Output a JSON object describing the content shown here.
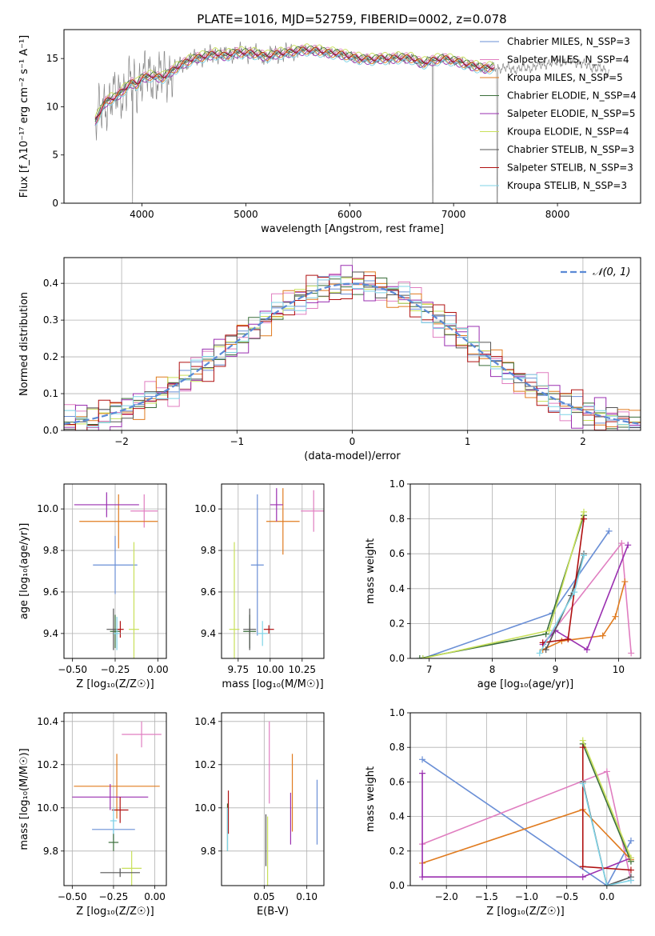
{
  "figure": {
    "title": "PLATE=1016, MJD=52759, FIBERID=0002, z=0.078"
  },
  "series_legend": [
    {
      "name": "Chabrier MILES, N_SSP=3",
      "color": "#6a8fd6"
    },
    {
      "name": "Salpeter MILES, N_SSP=4",
      "color": "#e07ec0"
    },
    {
      "name": "Kroupa MILES, N_SSP=5",
      "color": "#e07b1f"
    },
    {
      "name": "Chabrier ELODIE, N_SSP=4",
      "color": "#3a6e3a"
    },
    {
      "name": "Salpeter ELODIE, N_SSP=5",
      "color": "#9a2fb0"
    },
    {
      "name": "Kroupa ELODIE, N_SSP=4",
      "color": "#c8e05a"
    },
    {
      "name": "Chabrier STELIB, N_SSP=3",
      "color": "#555555"
    },
    {
      "name": "Salpeter STELIB, N_SSP=3",
      "color": "#b01010"
    },
    {
      "name": "Kroupa STELIB, N_SSP=3",
      "color": "#7fd3e6"
    }
  ],
  "chart_data": [
    {
      "id": "spectrum",
      "type": "line",
      "xlabel": "wavelength [Angstrom, rest frame]",
      "ylabel": "Flux [f_λ10⁻¹⁷ erg cm⁻² s⁻¹ A⁻¹]",
      "xlim": [
        3250,
        8800
      ],
      "ylim": [
        0,
        18
      ],
      "xticks": [
        4000,
        5000,
        6000,
        7000,
        8000
      ],
      "yticks": [
        0,
        5,
        10,
        15
      ],
      "data_color": "#888888",
      "data": {
        "x": [
          3550,
          3600,
          3650,
          3700,
          3750,
          3800,
          3850,
          3900,
          3950,
          4000,
          4100,
          4200,
          4300,
          4400,
          4500,
          4600,
          4700,
          4800,
          4900,
          5000,
          5100,
          5200,
          5300,
          5400,
          5500,
          5600,
          5700,
          5800,
          5900,
          6000,
          6100,
          6200,
          6300,
          6400,
          6500,
          6600,
          6700,
          6800,
          6900,
          7000,
          7100,
          7200,
          7300,
          7400,
          7500,
          7600,
          7700,
          7800,
          7900,
          8000,
          8100,
          8200,
          8300,
          8400,
          8500
        ],
        "y": [
          8.5,
          9.5,
          10.5,
          10.8,
          11.0,
          11.5,
          12.0,
          12.5,
          12.3,
          13.0,
          13.2,
          13.0,
          13.8,
          14.5,
          15.0,
          15.2,
          15.5,
          15.3,
          15.6,
          15.6,
          15.5,
          15.2,
          15.5,
          15.6,
          15.8,
          15.9,
          15.8,
          15.6,
          15.5,
          15.2,
          15.0,
          14.9,
          15.0,
          15.0,
          15.1,
          15.0,
          14.5,
          14.8,
          15.0,
          14.8,
          14.5,
          14.2,
          14.0,
          14.1,
          14.0,
          13.9,
          14.0,
          14.2,
          14.5,
          14.6,
          14.8,
          14.6,
          14.2,
          14.0,
          13.5
        ]
      },
      "drops": [
        {
          "x": 3910,
          "y": 0
        },
        {
          "x": 6800,
          "y": 0
        },
        {
          "x": 7420,
          "y": 0
        }
      ],
      "model_offsets": [
        0.0,
        0.3,
        -0.2,
        0.2,
        -0.3,
        0.4,
        -0.1,
        0.1,
        -0.4
      ],
      "model_xmax": 7400
    },
    {
      "id": "residuals",
      "type": "histogram",
      "xlabel": "(data-model)/error",
      "ylabel": "Normed distribution",
      "xlim": [
        -2.5,
        2.5
      ],
      "ylim": [
        0,
        0.47
      ],
      "xticks": [
        -2,
        -1,
        0,
        1,
        2
      ],
      "yticks": [
        0.0,
        0.1,
        0.2,
        0.3,
        0.4
      ],
      "bin_width": 0.1,
      "reference": {
        "name": "𝒩(0, 1)",
        "color": "#5b8ad6",
        "dash": "dashed"
      },
      "jitter": [
        0.02,
        -0.03,
        0.025,
        -0.015,
        0.03,
        -0.02,
        0.015,
        -0.025,
        0.01
      ]
    },
    {
      "id": "age-vs-Z",
      "type": "errorbar",
      "xlabel": "Z [log₁₀(Z/Z☉)]",
      "ylabel": "age  [log₁₀(age/yr)]",
      "xlim": [
        -0.55,
        0.05
      ],
      "ylim": [
        9.28,
        10.12
      ],
      "xticks": [
        -0.5,
        -0.25,
        0.0
      ],
      "yticks": [
        9.4,
        9.6,
        9.8,
        10.0
      ],
      "points": [
        {
          "s": 0,
          "x": -0.25,
          "y": 9.73,
          "xerr": 0.13,
          "yerr": 0.14
        },
        {
          "s": 1,
          "x": -0.08,
          "y": 9.99,
          "xerr": 0.08,
          "yerr": 0.08
        },
        {
          "s": 2,
          "x": -0.23,
          "y": 9.94,
          "xerr": 0.23,
          "yerr": 0.13
        },
        {
          "s": 3,
          "x": -0.25,
          "y": 9.41,
          "xerr": 0.03,
          "yerr": 0.08
        },
        {
          "s": 4,
          "x": -0.3,
          "y": 10.02,
          "xerr": 0.19,
          "yerr": 0.06
        },
        {
          "s": 5,
          "x": -0.14,
          "y": 9.42,
          "xerr": 0.03,
          "yerr": 0.42
        },
        {
          "s": 6,
          "x": -0.26,
          "y": 9.42,
          "xerr": 0.04,
          "yerr": 0.1
        },
        {
          "s": 7,
          "x": -0.22,
          "y": 9.42,
          "xerr": 0.02,
          "yerr": 0.04
        },
        {
          "s": 8,
          "x": -0.24,
          "y": 9.4,
          "xerr": 0.02,
          "yerr": 0.08
        }
      ]
    },
    {
      "id": "age-vs-mass",
      "type": "errorbar",
      "xlabel": "mass [log₁₀(M/M☉)]",
      "ylabel": "",
      "xlim": [
        9.62,
        10.42
      ],
      "ylim": [
        9.28,
        10.12
      ],
      "xticks": [
        9.75,
        10.0,
        10.25
      ],
      "yticks": [
        9.4,
        9.6,
        9.8,
        10.0
      ],
      "points": [
        {
          "s": 0,
          "x": 9.9,
          "y": 9.73,
          "xerr": 0.05,
          "yerr": 0.34
        },
        {
          "s": 1,
          "x": 10.34,
          "y": 9.99,
          "xerr": 0.1,
          "yerr": 0.1
        },
        {
          "s": 2,
          "x": 10.1,
          "y": 9.94,
          "xerr": 0.13,
          "yerr": 0.16
        },
        {
          "s": 3,
          "x": 9.84,
          "y": 9.41,
          "xerr": 0.05,
          "yerr": 0.08
        },
        {
          "s": 4,
          "x": 10.05,
          "y": 10.02,
          "xerr": 0.05,
          "yerr": 0.08
        },
        {
          "s": 5,
          "x": 9.72,
          "y": 9.42,
          "xerr": 0.04,
          "yerr": 0.42
        },
        {
          "s": 6,
          "x": 9.84,
          "y": 9.42,
          "xerr": 0.05,
          "yerr": 0.1
        },
        {
          "s": 7,
          "x": 9.99,
          "y": 9.42,
          "xerr": 0.04,
          "yerr": 0.02
        },
        {
          "s": 8,
          "x": 9.94,
          "y": 9.4,
          "xerr": 0.04,
          "yerr": 0.06
        }
      ]
    },
    {
      "id": "weight-vs-age",
      "type": "line",
      "xlabel": "age  [log₁₀(age/yr)]",
      "ylabel": "mass weight",
      "xlim": [
        6.7,
        10.35
      ],
      "ylim": [
        0,
        1
      ],
      "xticks": [
        7,
        8,
        9,
        10
      ],
      "yticks": [
        0.0,
        0.2,
        0.4,
        0.6,
        0.8,
        1.0
      ],
      "series": [
        {
          "s": 0,
          "x": [
            6.9,
            8.95,
            9.85
          ],
          "y": [
            0.0,
            0.26,
            0.73
          ]
        },
        {
          "s": 1,
          "x": [
            8.8,
            10.05,
            10.2
          ],
          "y": [
            0.08,
            0.66,
            0.03
          ]
        },
        {
          "s": 2,
          "x": [
            8.8,
            9.1,
            9.75,
            9.95,
            10.1
          ],
          "y": [
            0.05,
            0.1,
            0.13,
            0.24,
            0.44
          ]
        },
        {
          "s": 3,
          "x": [
            6.85,
            8.85,
            9.45
          ],
          "y": [
            0.0,
            0.14,
            0.82
          ]
        },
        {
          "s": 4,
          "x": [
            8.8,
            9.0,
            9.5,
            10.15
          ],
          "y": [
            0.08,
            0.16,
            0.05,
            0.65
          ]
        },
        {
          "s": 5,
          "x": [
            6.9,
            8.9,
            9.45
          ],
          "y": [
            0.0,
            0.16,
            0.84
          ]
        },
        {
          "s": 6,
          "x": [
            8.85,
            9.25,
            9.45
          ],
          "y": [
            0.05,
            0.36,
            0.6
          ]
        },
        {
          "s": 7,
          "x": [
            8.8,
            9.2,
            9.45
          ],
          "y": [
            0.09,
            0.11,
            0.8
          ]
        },
        {
          "s": 8,
          "x": [
            8.75,
            9.3,
            9.45
          ],
          "y": [
            0.03,
            0.38,
            0.59
          ]
        }
      ]
    },
    {
      "id": "mass-vs-Z",
      "type": "errorbar",
      "xlabel": "Z [log₁₀(Z/Z☉)]",
      "ylabel": "mass [log₁₀(M/M☉)]",
      "xlim": [
        -0.55,
        0.07
      ],
      "ylim": [
        9.64,
        10.44
      ],
      "xticks": [
        -0.5,
        -0.25,
        0.0
      ],
      "yticks": [
        9.8,
        10.0,
        10.2,
        10.4
      ],
      "points": [
        {
          "s": 0,
          "x": -0.25,
          "y": 9.9,
          "xerr": 0.13,
          "yerr": 0.05
        },
        {
          "s": 1,
          "x": -0.08,
          "y": 10.34,
          "xerr": 0.12,
          "yerr": 0.06
        },
        {
          "s": 2,
          "x": -0.23,
          "y": 10.1,
          "xerr": 0.26,
          "yerr": 0.15
        },
        {
          "s": 3,
          "x": -0.25,
          "y": 9.84,
          "xerr": 0.03,
          "yerr": 0.04
        },
        {
          "s": 4,
          "x": -0.27,
          "y": 10.05,
          "xerr": 0.23,
          "yerr": 0.06
        },
        {
          "s": 5,
          "x": -0.14,
          "y": 9.72,
          "xerr": 0.06,
          "yerr": 0.08
        },
        {
          "s": 6,
          "x": -0.21,
          "y": 9.7,
          "xerr": 0.12,
          "yerr": 0.02
        },
        {
          "s": 7,
          "x": -0.21,
          "y": 9.99,
          "xerr": 0.05,
          "yerr": 0.06
        },
        {
          "s": 8,
          "x": -0.25,
          "y": 9.94,
          "xerr": 0.02,
          "yerr": 0.06
        }
      ]
    },
    {
      "id": "mass-vs-ebv",
      "type": "errorbar",
      "xlabel": "E(B-V)",
      "ylabel": "",
      "xlim": [
        0.0,
        0.12
      ],
      "ylim": [
        9.64,
        10.44
      ],
      "xticks": [
        0.05,
        0.1
      ],
      "yticks": [
        9.8,
        10.0,
        10.2,
        10.4
      ],
      "points": [
        {
          "s": 0,
          "x": 0.112,
          "y": 9.98,
          "xerr": 0,
          "yerr": 0.15
        },
        {
          "s": 1,
          "x": 0.056,
          "y": 10.21,
          "xerr": 0,
          "yerr": 0.19
        },
        {
          "s": 2,
          "x": 0.083,
          "y": 10.07,
          "xerr": 0,
          "yerr": 0.18
        },
        {
          "s": 3,
          "x": 0.007,
          "y": 9.91,
          "xerr": 0,
          "yerr": 0.11
        },
        {
          "s": 4,
          "x": 0.081,
          "y": 9.95,
          "xerr": 0,
          "yerr": 0.12
        },
        {
          "s": 5,
          "x": 0.054,
          "y": 9.77,
          "xerr": 0,
          "yerr": 0.19
        },
        {
          "s": 6,
          "x": 0.052,
          "y": 9.85,
          "xerr": 0,
          "yerr": 0.12
        },
        {
          "s": 7,
          "x": 0.008,
          "y": 9.98,
          "xerr": 0,
          "yerr": 0.1
        },
        {
          "s": 8,
          "x": 0.007,
          "y": 9.9,
          "xerr": 0,
          "yerr": 0.1
        }
      ]
    },
    {
      "id": "weight-vs-Z",
      "type": "line",
      "xlabel": "Z [log₁₀(Z/Z☉)]",
      "ylabel": "mass weight",
      "xlim": [
        -2.45,
        0.42
      ],
      "ylim": [
        0,
        1
      ],
      "xticks": [
        -2.0,
        -1.5,
        -1.0,
        -0.5,
        0.0
      ],
      "yticks": [
        0.0,
        0.2,
        0.4,
        0.6,
        0.8,
        1.0
      ],
      "series": [
        {
          "s": 0,
          "x": [
            -2.3,
            0.0,
            0.3
          ],
          "y": [
            0.73,
            0.0,
            0.26
          ]
        },
        {
          "s": 1,
          "x": [
            -2.3,
            0.0,
            0.3
          ],
          "y": [
            0.24,
            0.66,
            0.03
          ]
        },
        {
          "s": 2,
          "x": [
            -2.3,
            -0.3,
            0.3
          ],
          "y": [
            0.13,
            0.44,
            0.15
          ]
        },
        {
          "s": 3,
          "x": [
            -0.3,
            0.3
          ],
          "y": [
            0.82,
            0.14
          ]
        },
        {
          "s": 4,
          "x": [
            -2.3,
            -2.3,
            -0.3,
            0.3
          ],
          "y": [
            0.65,
            0.05,
            0.05,
            0.16
          ]
        },
        {
          "s": 5,
          "x": [
            -0.3,
            0.3
          ],
          "y": [
            0.84,
            0.16
          ]
        },
        {
          "s": 6,
          "x": [
            -0.3,
            0.0,
            0.3
          ],
          "y": [
            0.6,
            0.0,
            0.05
          ]
        },
        {
          "s": 7,
          "x": [
            -0.3,
            -0.3,
            0.3
          ],
          "y": [
            0.8,
            0.11,
            0.09
          ]
        },
        {
          "s": 8,
          "x": [
            -0.3,
            0.0,
            0.3
          ],
          "y": [
            0.59,
            0.0,
            0.03
          ]
        }
      ]
    }
  ]
}
